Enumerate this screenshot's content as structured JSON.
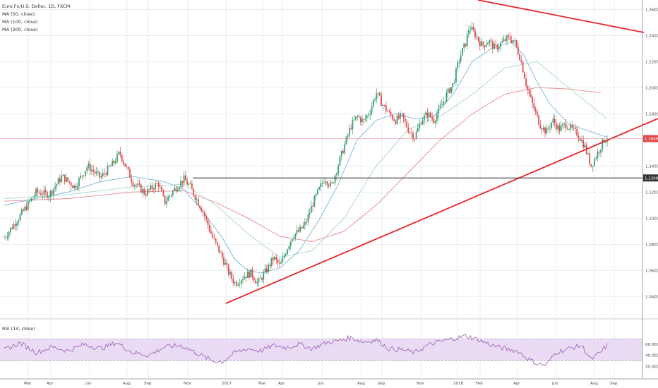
{
  "legend": {
    "symbol": "Euro Fx/U.S. Dollar, 1D, FXCM",
    "ma50": "MA (50, close)",
    "ma100": "MA (100, close)",
    "ma200": "MA (200, close)"
  },
  "rsi": {
    "title": "RSI (14, close)",
    "ticks": [
      "60.0000",
      "40.0000",
      "20.0000"
    ],
    "upper": 70,
    "lower": 30
  },
  "colors": {
    "up": "#3b9e74",
    "down": "#e04b4b",
    "ma50": "#7cb5d8",
    "ma100": "#a8d8c4",
    "ma200": "#e88b8b",
    "trendline": "#e8262a",
    "support": "#222222",
    "rsi_line": "#9b59b6",
    "rsi_band": "#e6d5f2",
    "grid": "#e3e8f5"
  },
  "chart_data": {
    "type": "candlestick",
    "title": "Euro Fx/U.S. Dollar, 1D, FXCM",
    "y_ticks": [
      "1.26000",
      "1.24000",
      "1.22000",
      "1.20000",
      "1.18000",
      "1.14000",
      "1.12000",
      "1.10000",
      "1.08000",
      "1.06000",
      "1.04000"
    ],
    "ylim": [
      1.025,
      1.265
    ],
    "x_ticks": [
      "Mar",
      "Apr",
      "Jun",
      "Aug",
      "Sep",
      "Nov",
      "2017",
      "Mar",
      "Apr",
      "Jun",
      "Aug",
      "Sep",
      "Nov",
      "2018",
      "Feb",
      "Apr",
      "Jun",
      "Aug",
      "Sep"
    ],
    "current_price_label": "1.16098",
    "current_price": 1.16098,
    "support_label": "1.13081",
    "support_level": 1.1308,
    "price_path": [
      [
        0,
        1.085
      ],
      [
        5,
        1.102
      ],
      [
        10,
        1.12
      ],
      [
        14,
        1.118
      ],
      [
        18,
        1.132
      ],
      [
        22,
        1.124
      ],
      [
        26,
        1.14
      ],
      [
        30,
        1.131
      ],
      [
        34,
        1.142
      ],
      [
        36,
        1.15
      ],
      [
        40,
        1.128
      ],
      [
        44,
        1.119
      ],
      [
        48,
        1.127
      ],
      [
        50,
        1.112
      ],
      [
        53,
        1.122
      ],
      [
        56,
        1.13
      ],
      [
        58,
        1.124
      ],
      [
        62,
        1.105
      ],
      [
        65,
        1.085
      ],
      [
        68,
        1.07
      ],
      [
        70,
        1.058
      ],
      [
        72,
        1.05
      ],
      [
        75,
        1.056
      ],
      [
        77,
        1.058
      ],
      [
        79,
        1.05
      ],
      [
        82,
        1.061
      ],
      [
        84,
        1.07
      ],
      [
        86,
        1.063
      ],
      [
        88,
        1.076
      ],
      [
        90,
        1.087
      ],
      [
        92,
        1.09
      ],
      [
        94,
        1.096
      ],
      [
        96,
        1.11
      ],
      [
        98,
        1.121
      ],
      [
        100,
        1.131
      ],
      [
        102,
        1.124
      ],
      [
        104,
        1.14
      ],
      [
        106,
        1.155
      ],
      [
        108,
        1.17
      ],
      [
        110,
        1.178
      ],
      [
        112,
        1.174
      ],
      [
        114,
        1.182
      ],
      [
        116,
        1.196
      ],
      [
        118,
        1.187
      ],
      [
        120,
        1.18
      ],
      [
        122,
        1.175
      ],
      [
        124,
        1.178
      ],
      [
        126,
        1.168
      ],
      [
        128,
        1.162
      ],
      [
        130,
        1.175
      ],
      [
        132,
        1.18
      ],
      [
        134,
        1.175
      ],
      [
        136,
        1.185
      ],
      [
        138,
        1.195
      ],
      [
        140,
        1.203
      ],
      [
        142,
        1.223
      ],
      [
        144,
        1.235
      ],
      [
        145,
        1.247
      ],
      [
        147,
        1.24
      ],
      [
        149,
        1.232
      ],
      [
        151,
        1.236
      ],
      [
        153,
        1.23
      ],
      [
        155,
        1.234
      ],
      [
        157,
        1.238
      ],
      [
        159,
        1.236
      ],
      [
        161,
        1.222
      ],
      [
        163,
        1.2
      ],
      [
        165,
        1.185
      ],
      [
        167,
        1.172
      ],
      [
        169,
        1.166
      ],
      [
        171,
        1.175
      ],
      [
        173,
        1.168
      ],
      [
        175,
        1.172
      ],
      [
        177,
        1.168
      ],
      [
        179,
        1.164
      ],
      [
        181,
        1.155
      ],
      [
        183,
        1.14
      ],
      [
        185,
        1.15
      ],
      [
        187,
        1.16
      ],
      [
        188,
        1.161
      ]
    ],
    "ma50_path": [
      [
        0,
        1.11
      ],
      [
        10,
        1.115
      ],
      [
        20,
        1.12
      ],
      [
        30,
        1.128
      ],
      [
        40,
        1.132
      ],
      [
        50,
        1.128
      ],
      [
        56,
        1.122
      ],
      [
        62,
        1.105
      ],
      [
        68,
        1.085
      ],
      [
        72,
        1.068
      ],
      [
        76,
        1.06
      ],
      [
        80,
        1.058
      ],
      [
        86,
        1.062
      ],
      [
        92,
        1.075
      ],
      [
        98,
        1.098
      ],
      [
        104,
        1.125
      ],
      [
        110,
        1.16
      ],
      [
        116,
        1.175
      ],
      [
        122,
        1.18
      ],
      [
        128,
        1.176
      ],
      [
        134,
        1.178
      ],
      [
        140,
        1.195
      ],
      [
        146,
        1.22
      ],
      [
        152,
        1.23
      ],
      [
        158,
        1.235
      ],
      [
        162,
        1.225
      ],
      [
        166,
        1.205
      ],
      [
        170,
        1.188
      ],
      [
        176,
        1.172
      ],
      [
        182,
        1.167
      ],
      [
        188,
        1.162
      ]
    ],
    "ma100_path": [
      [
        0,
        1.115
      ],
      [
        20,
        1.118
      ],
      [
        40,
        1.124
      ],
      [
        56,
        1.126
      ],
      [
        66,
        1.11
      ],
      [
        76,
        1.088
      ],
      [
        86,
        1.07
      ],
      [
        96,
        1.075
      ],
      [
        106,
        1.1
      ],
      [
        116,
        1.14
      ],
      [
        126,
        1.168
      ],
      [
        136,
        1.178
      ],
      [
        146,
        1.195
      ],
      [
        156,
        1.215
      ],
      [
        166,
        1.22
      ],
      [
        176,
        1.2
      ],
      [
        186,
        1.18
      ],
      [
        188,
        1.176
      ]
    ],
    "ma200_path": [
      [
        0,
        1.113
      ],
      [
        20,
        1.115
      ],
      [
        40,
        1.12
      ],
      [
        56,
        1.121
      ],
      [
        66,
        1.112
      ],
      [
        76,
        1.1
      ],
      [
        86,
        1.086
      ],
      [
        96,
        1.082
      ],
      [
        106,
        1.09
      ],
      [
        116,
        1.11
      ],
      [
        126,
        1.135
      ],
      [
        136,
        1.16
      ],
      [
        146,
        1.18
      ],
      [
        156,
        1.195
      ],
      [
        166,
        1.2
      ],
      [
        176,
        1.199
      ],
      [
        186,
        1.196
      ]
    ],
    "rsi_path": [
      [
        0,
        50
      ],
      [
        5,
        62
      ],
      [
        10,
        45
      ],
      [
        15,
        55
      ],
      [
        20,
        48
      ],
      [
        25,
        60
      ],
      [
        30,
        52
      ],
      [
        35,
        63
      ],
      [
        40,
        45
      ],
      [
        45,
        40
      ],
      [
        50,
        55
      ],
      [
        55,
        58
      ],
      [
        58,
        50
      ],
      [
        62,
        38
      ],
      [
        65,
        30
      ],
      [
        68,
        28
      ],
      [
        72,
        45
      ],
      [
        76,
        52
      ],
      [
        80,
        48
      ],
      [
        84,
        58
      ],
      [
        88,
        54
      ],
      [
        92,
        60
      ],
      [
        96,
        52
      ],
      [
        100,
        62
      ],
      [
        104,
        66
      ],
      [
        108,
        72
      ],
      [
        112,
        64
      ],
      [
        116,
        68
      ],
      [
        120,
        52
      ],
      [
        124,
        50
      ],
      [
        128,
        45
      ],
      [
        132,
        58
      ],
      [
        136,
        65
      ],
      [
        140,
        70
      ],
      [
        144,
        75
      ],
      [
        148,
        68
      ],
      [
        152,
        58
      ],
      [
        156,
        52
      ],
      [
        160,
        48
      ],
      [
        163,
        35
      ],
      [
        166,
        25
      ],
      [
        169,
        22
      ],
      [
        172,
        45
      ],
      [
        176,
        52
      ],
      [
        180,
        58
      ],
      [
        183,
        32
      ],
      [
        186,
        46
      ],
      [
        188,
        58
      ]
    ]
  }
}
